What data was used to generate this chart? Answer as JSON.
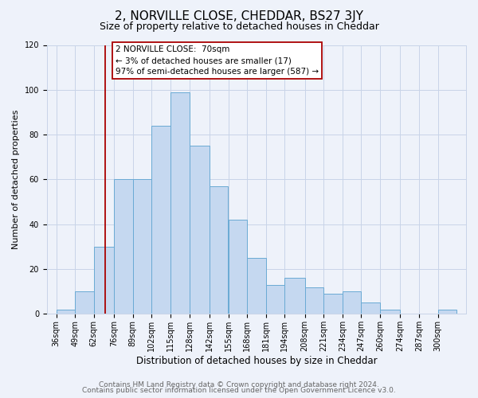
{
  "title": "2, NORVILLE CLOSE, CHEDDAR, BS27 3JY",
  "subtitle": "Size of property relative to detached houses in Cheddar",
  "xlabel": "Distribution of detached houses by size in Cheddar",
  "ylabel": "Number of detached properties",
  "footer_line1": "Contains HM Land Registry data © Crown copyright and database right 2024.",
  "footer_line2": "Contains public sector information licensed under the Open Government Licence v3.0.",
  "bin_labels": [
    "36sqm",
    "49sqm",
    "62sqm",
    "76sqm",
    "89sqm",
    "102sqm",
    "115sqm",
    "128sqm",
    "142sqm",
    "155sqm",
    "168sqm",
    "181sqm",
    "194sqm",
    "208sqm",
    "221sqm",
    "234sqm",
    "247sqm",
    "260sqm",
    "274sqm",
    "287sqm",
    "300sqm"
  ],
  "bar_values": [
    2,
    10,
    30,
    60,
    60,
    84,
    99,
    75,
    57,
    42,
    25,
    13,
    16,
    12,
    9,
    10,
    5,
    2,
    0,
    0,
    2
  ],
  "bin_edges": [
    36,
    49,
    62,
    76,
    89,
    102,
    115,
    128,
    142,
    155,
    168,
    181,
    194,
    208,
    221,
    234,
    247,
    260,
    274,
    287,
    300
  ],
  "bar_color": "#c5d8f0",
  "bar_edge_color": "#6aaad4",
  "grid_color": "#c8d4e8",
  "background_color": "#eef2fa",
  "vline_x": 70,
  "vline_color": "#aa0000",
  "annotation_line1": "2 NORVILLE CLOSE:  70sqm",
  "annotation_line2": "← 3% of detached houses are smaller (17)",
  "annotation_line3": "97% of semi-detached houses are larger (587) →",
  "annotation_box_color": "white",
  "annotation_box_edge_color": "#aa0000",
  "ylim": [
    0,
    120
  ],
  "yticks": [
    0,
    20,
    40,
    60,
    80,
    100,
    120
  ],
  "title_fontsize": 11,
  "subtitle_fontsize": 9,
  "xlabel_fontsize": 8.5,
  "ylabel_fontsize": 8,
  "tick_fontsize": 7,
  "annot_fontsize": 7.5,
  "footer_fontsize": 6.5
}
